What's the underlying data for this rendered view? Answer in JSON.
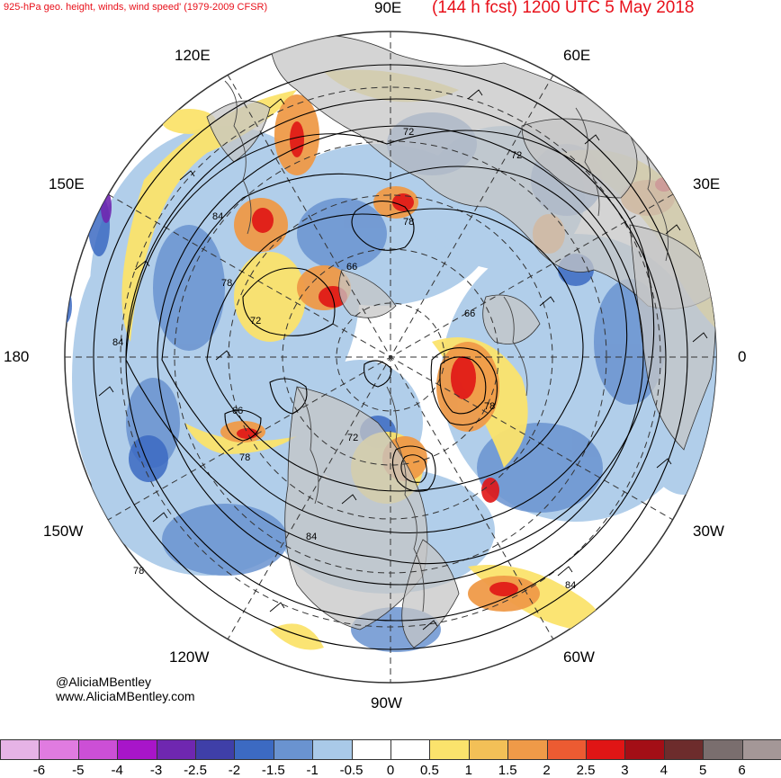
{
  "title": {
    "left": "925-hPa geo. height, winds, wind speed' (1979-2009 CFSR)",
    "right": "(144 h fcst) 1200 UTC 5 May 2018"
  },
  "lon_labels": {
    "e90": "90E",
    "e60": "60E",
    "e120": "120E",
    "e150": "150E",
    "e30": "30E",
    "zero": "0",
    "w180": "180",
    "w30": "30W",
    "w150": "150W",
    "w60": "60W",
    "w120": "120W",
    "w90": "90W"
  },
  "contour_labels": [
    "72",
    "72",
    "84",
    "78",
    "66",
    "78",
    "72",
    "66",
    "84",
    "78",
    "66",
    "72",
    "78",
    "84",
    "84",
    "78"
  ],
  "credits": {
    "handle": "@AliciaMBentley",
    "site": "www.AliciaMBentley.com"
  },
  "colorbar": {
    "ticks": [
      "-6",
      "-5",
      "-4",
      "-3",
      "-2.5",
      "-2",
      "-1.5",
      "-1",
      "-0.5",
      "0",
      "0.5",
      "1",
      "1.5",
      "2",
      "2.5",
      "3",
      "4",
      "5",
      "6"
    ],
    "colors": [
      "#e6b3e6",
      "#e07be0",
      "#cc4fd6",
      "#a815c9",
      "#6f27b0",
      "#3f3fa8",
      "#3c6ac2",
      "#6a93d0",
      "#a9c9e8",
      "#ffffff",
      "#ffffff",
      "#fbe36c",
      "#f3c057",
      "#ef9a48",
      "#ec5b32",
      "#e01515",
      "#a30e16",
      "#6d2c2c",
      "#7a6e6e",
      "#a49797"
    ]
  },
  "map_colors": {
    "land": "#c6c6c6",
    "coast": "#333333",
    "contour": "#000000",
    "grid": "#333333"
  }
}
